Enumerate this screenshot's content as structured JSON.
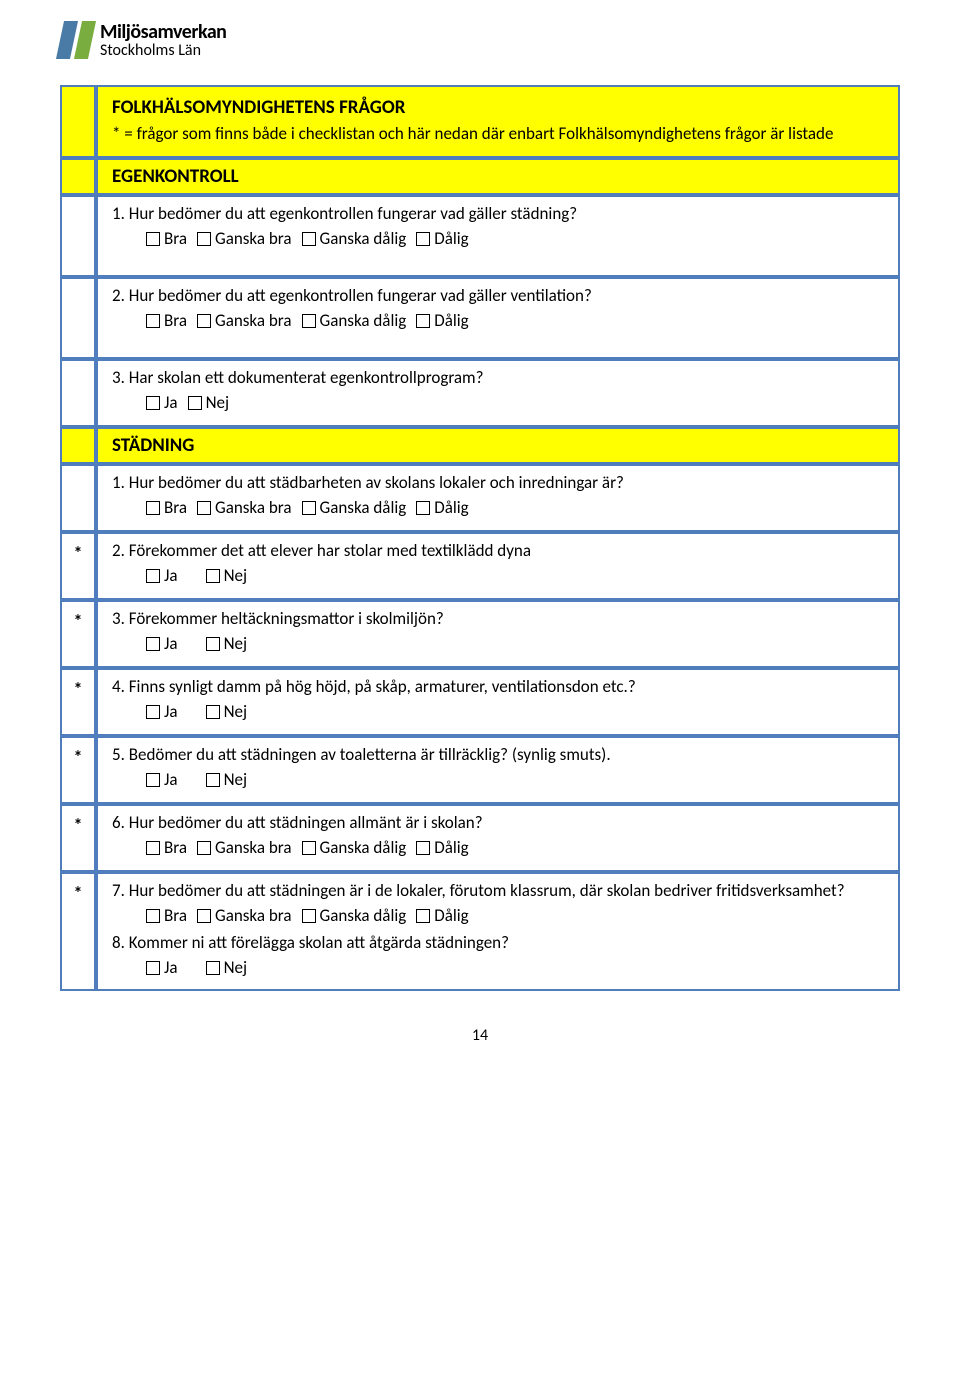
{
  "logo": {
    "title": "Miljösamverkan",
    "subtitle": "Stockholms Län",
    "bar_colors": [
      "#4a7ba6",
      "#7aad3f"
    ]
  },
  "colors": {
    "highlight": "#ffff00",
    "border": "#507dbc",
    "background": "#ffffff"
  },
  "rows": [
    {
      "type": "heading",
      "marker": "",
      "title": "FOLKHÄLSOMYNDIGHETENS FRÅGOR",
      "subtitle": "* = frågor som finns både i checklistan och här nedan där enbart Folkhälsomyndighetens frågor är listade"
    },
    {
      "type": "subheading",
      "marker": "",
      "title": "EGENKONTROLL"
    },
    {
      "type": "question",
      "marker": "",
      "text": "1.   Hur bedömer du att egenkontrollen fungerar vad gäller städning?",
      "options": [
        "Bra",
        "Ganska bra",
        "Ganska dålig",
        "Dålig"
      ]
    },
    {
      "type": "question",
      "marker": "",
      "text": "2.   Hur bedömer du att egenkontrollen fungerar vad gäller ventilation?",
      "options": [
        "Bra",
        "Ganska bra",
        "Ganska dålig",
        "Dålig"
      ]
    },
    {
      "type": "question",
      "marker": "",
      "text": "3.   Har skolan ett dokumenterat egenkontrollprogram?",
      "options": [
        "Ja",
        "Nej"
      ],
      "short": true
    },
    {
      "type": "subheading",
      "marker": "",
      "title": "STÄDNING"
    },
    {
      "type": "question",
      "marker": "",
      "text": "1.   Hur bedömer du att städbarheten av skolans lokaler och inredningar är?",
      "options": [
        "Bra",
        "Ganska bra",
        "Ganska dålig",
        "Dålig"
      ],
      "short": true
    },
    {
      "type": "question",
      "marker": "*",
      "text": "2.   Förekommer det att elever har stolar med textilklädd dyna",
      "options": [
        "Ja",
        "Nej"
      ],
      "opt_wide": true,
      "short": true
    },
    {
      "type": "question",
      "marker": "*",
      "text": "3.   Förekommer heltäckningsmattor i skolmiljön?",
      "options": [
        "Ja",
        "Nej"
      ],
      "opt_wide": true,
      "short": true
    },
    {
      "type": "question",
      "marker": "*",
      "text": "4.   Finns synligt damm på hög höjd, på skåp, armaturer, ventilationsdon etc.?",
      "options": [
        "Ja",
        "Nej"
      ],
      "opt_wide": true,
      "short": true
    },
    {
      "type": "question",
      "marker": "*",
      "text": "5.   Bedömer du att städningen av toaletterna är tillräcklig? (synlig smuts).",
      "options": [
        "Ja",
        "Nej"
      ],
      "opt_wide": true,
      "short": true
    },
    {
      "type": "question",
      "marker": "*",
      "text": "6.   Hur bedömer du att städningen allmänt är i skolan?",
      "options": [
        "Bra",
        "Ganska bra",
        "Ganska dålig",
        "Dålig"
      ],
      "short": true
    },
    {
      "type": "question",
      "marker": "*",
      "text": "7.   Hur bedömer du att städningen är i de lokaler, förutom klassrum, där skolan bedriver fritidsverksamhet?",
      "options": [
        "Bra",
        "Ganska bra",
        "Ganska dålig",
        "Dålig"
      ],
      "followup_text": "8.   Kommer ni att förelägga skolan att åtgärda städningen?",
      "followup_options": [
        "Ja",
        "Nej"
      ],
      "followup_opt_wide": true,
      "short": true
    }
  ],
  "page_number": "14"
}
